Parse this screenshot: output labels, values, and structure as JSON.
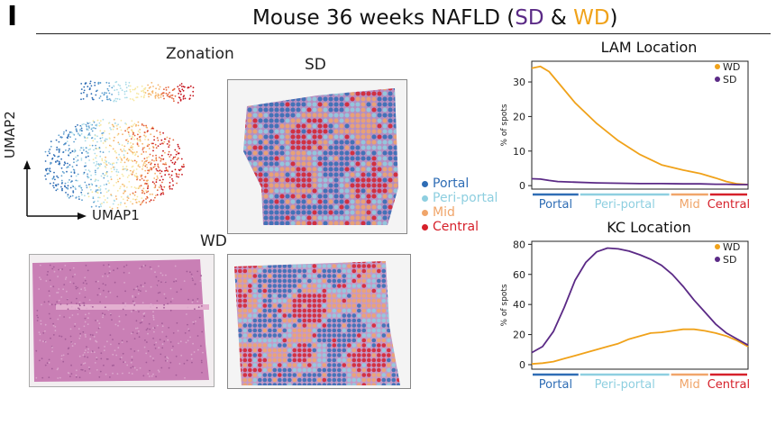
{
  "panel_letter": "I",
  "title": {
    "prefix": "Mouse 36 weeks NAFLD (",
    "sd": "SD",
    "amp": " & ",
    "wd": "WD",
    "suffix": ")"
  },
  "zonation": {
    "title": "Zonation",
    "x_axis": "UMAP1",
    "y_axis": "UMAP2"
  },
  "sd_label": "SD",
  "wd_label": "WD",
  "zone_legend": [
    {
      "name": "Portal",
      "color": "#2f6db5"
    },
    {
      "name": "Peri-portal",
      "color": "#8ecfe0"
    },
    {
      "name": "Mid",
      "color": "#f0a56a"
    },
    {
      "name": "Central",
      "color": "#d6202a"
    }
  ],
  "colors": {
    "sd": "#5b2a86",
    "wd": "#f0a21a"
  },
  "chart_data": [
    {
      "type": "line",
      "title": "LAM Location",
      "ylabel": "% of spots",
      "xlabel": "",
      "ylim": [
        -1,
        36
      ],
      "yticks": [
        0,
        10,
        20,
        30
      ],
      "x": [
        0,
        0.04,
        0.08,
        0.12,
        0.2,
        0.3,
        0.4,
        0.5,
        0.6,
        0.7,
        0.78,
        0.85,
        0.9,
        0.95,
        1.0
      ],
      "series": [
        {
          "name": "WD",
          "color": "#f0a21a",
          "values": [
            34,
            34.5,
            33,
            30,
            24,
            18,
            13,
            9,
            6,
            4.5,
            3.5,
            2.2,
            1.2,
            0.5,
            0.3
          ]
        },
        {
          "name": "SD",
          "color": "#5b2a86",
          "values": [
            2.0,
            1.9,
            1.5,
            1.2,
            1.0,
            0.8,
            0.7,
            0.6,
            0.6,
            0.5,
            0.5,
            0.4,
            0.4,
            0.3,
            0.3
          ]
        }
      ],
      "zones": [
        {
          "name": "Portal",
          "color": "#2f6db5"
        },
        {
          "name": "Peri-portal",
          "color": "#8ecfe0"
        },
        {
          "name": "Mid",
          "color": "#f0a56a"
        },
        {
          "name": "Central",
          "color": "#d6202a"
        }
      ],
      "legend": "top-right"
    },
    {
      "type": "line",
      "title": "KC Location",
      "ylabel": "% of spots",
      "xlabel": "",
      "ylim": [
        -3,
        82
      ],
      "yticks": [
        0,
        20,
        40,
        60,
        80
      ],
      "x": [
        0,
        0.05,
        0.1,
        0.15,
        0.2,
        0.25,
        0.3,
        0.35,
        0.4,
        0.45,
        0.5,
        0.55,
        0.6,
        0.65,
        0.7,
        0.75,
        0.8,
        0.85,
        0.9,
        0.95,
        1.0
      ],
      "series": [
        {
          "name": "WD",
          "color": "#f0a21a",
          "values": [
            0.5,
            1,
            2,
            4,
            6,
            8,
            10,
            12,
            14,
            17,
            19,
            21,
            21.5,
            22.5,
            23.5,
            23.5,
            22.5,
            21,
            19,
            16,
            12
          ]
        },
        {
          "name": "SD",
          "color": "#5b2a86",
          "values": [
            8,
            12,
            22,
            38,
            56,
            68,
            75,
            77.5,
            77,
            75.5,
            73,
            70,
            66,
            60,
            52,
            43,
            35,
            27,
            21,
            17,
            13
          ]
        }
      ],
      "zones": [
        {
          "name": "Portal",
          "color": "#2f6db5"
        },
        {
          "name": "Peri-portal",
          "color": "#8ecfe0"
        },
        {
          "name": "Mid",
          "color": "#f0a56a"
        },
        {
          "name": "Central",
          "color": "#d6202a"
        }
      ],
      "legend": "top-right"
    }
  ]
}
